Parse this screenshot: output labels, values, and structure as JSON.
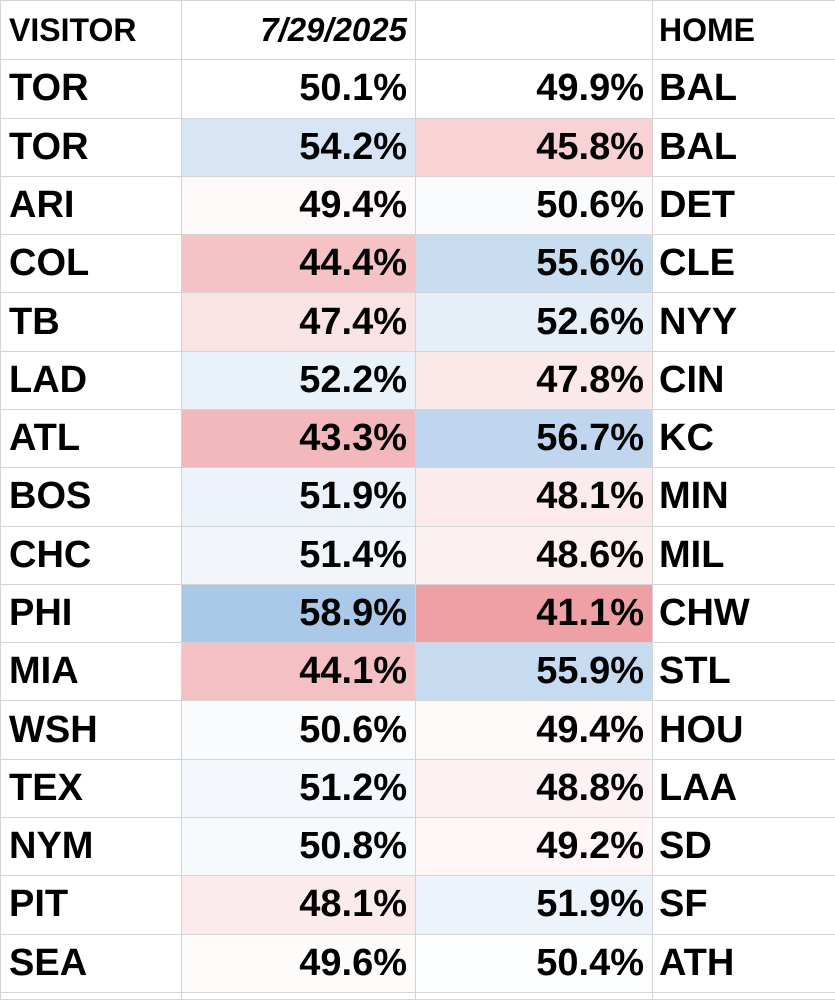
{
  "header": {
    "visitor_label": "VISITOR",
    "date": "7/29/2025",
    "blank": "",
    "home_label": "HOME"
  },
  "colors": {
    "favored": "#a9c8e8",
    "underdog": "#ef9fa3",
    "grid": "#d4d4d4"
  },
  "games": [
    {
      "visitor": "TOR",
      "visitor_pct": "50.1%",
      "home_pct": "49.9%",
      "home": "BAL"
    },
    {
      "visitor": "TOR",
      "visitor_pct": "54.2%",
      "home_pct": "45.8%",
      "home": "BAL"
    },
    {
      "visitor": "ARI",
      "visitor_pct": "49.4%",
      "home_pct": "50.6%",
      "home": "DET"
    },
    {
      "visitor": "COL",
      "visitor_pct": "44.4%",
      "home_pct": "55.6%",
      "home": "CLE"
    },
    {
      "visitor": "TB",
      "visitor_pct": "47.4%",
      "home_pct": "52.6%",
      "home": "NYY"
    },
    {
      "visitor": "LAD",
      "visitor_pct": "52.2%",
      "home_pct": "47.8%",
      "home": "CIN"
    },
    {
      "visitor": "ATL",
      "visitor_pct": "43.3%",
      "home_pct": "56.7%",
      "home": "KC"
    },
    {
      "visitor": "BOS",
      "visitor_pct": "51.9%",
      "home_pct": "48.1%",
      "home": "MIN"
    },
    {
      "visitor": "CHC",
      "visitor_pct": "51.4%",
      "home_pct": "48.6%",
      "home": "MIL"
    },
    {
      "visitor": "PHI",
      "visitor_pct": "58.9%",
      "home_pct": "41.1%",
      "home": "CHW"
    },
    {
      "visitor": "MIA",
      "visitor_pct": "44.1%",
      "home_pct": "55.9%",
      "home": "STL"
    },
    {
      "visitor": "WSH",
      "visitor_pct": "50.6%",
      "home_pct": "49.4%",
      "home": "HOU"
    },
    {
      "visitor": "TEX",
      "visitor_pct": "51.2%",
      "home_pct": "48.8%",
      "home": "LAA"
    },
    {
      "visitor": "NYM",
      "visitor_pct": "50.8%",
      "home_pct": "49.2%",
      "home": "SD"
    },
    {
      "visitor": "PIT",
      "visitor_pct": "48.1%",
      "home_pct": "51.9%",
      "home": "SF"
    },
    {
      "visitor": "SEA",
      "visitor_pct": "49.6%",
      "home_pct": "50.4%",
      "home": "ATH"
    }
  ]
}
